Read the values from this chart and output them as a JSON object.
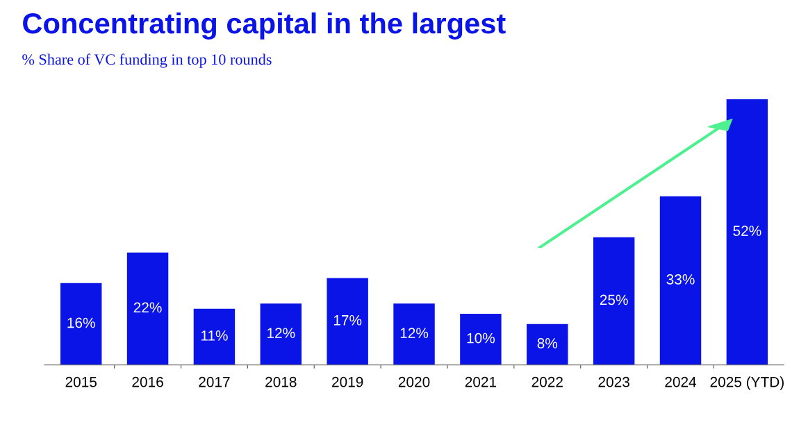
{
  "chart_data": {
    "type": "bar",
    "title": "Concentrating capital in the largest",
    "subtitle": "% Share of VC funding in top 10 rounds",
    "categories": [
      "2015",
      "2016",
      "2017",
      "2018",
      "2019",
      "2020",
      "2021",
      "2022",
      "2023",
      "2024",
      "2025 (YTD)"
    ],
    "values": [
      16,
      22,
      11,
      12,
      17,
      12,
      10,
      8,
      25,
      33,
      52
    ],
    "value_labels": [
      "16%",
      "22%",
      "11%",
      "12%",
      "17%",
      "12%",
      "10%",
      "8%",
      "25%",
      "33%",
      "52%"
    ],
    "color": "#0a14e6",
    "grid": false,
    "legend": false
  }
}
